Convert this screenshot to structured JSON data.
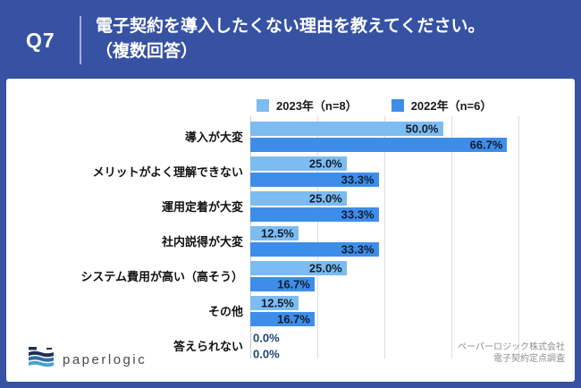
{
  "header": {
    "q_label": "Q7",
    "title_line1": "電子契約を導入したくない理由を教えてください。",
    "title_line2": "（複数回答）"
  },
  "chart_data": {
    "type": "bar",
    "orientation": "horizontal",
    "title": "電子契約を導入したくない理由（複数回答）",
    "categories": [
      "導入が大変",
      "メリットがよく理解できない",
      "運用定着が大変",
      "社内説得が大変",
      "システム費用が高い（高そう）",
      "その他",
      "答えられない"
    ],
    "series": [
      {
        "name": "2023年（n=8）",
        "color": "#7cbcf0",
        "values": [
          50.0,
          25.0,
          25.0,
          12.5,
          25.0,
          12.5,
          0.0
        ],
        "labels": [
          "50.0%",
          "25.0%",
          "25.0%",
          "12.5%",
          "25.0%",
          "12.5%",
          "0.0%"
        ]
      },
      {
        "name": "2022年（n=6）",
        "color": "#3e8ee9",
        "values": [
          66.7,
          33.3,
          33.3,
          33.3,
          16.7,
          16.7,
          0.0
        ],
        "labels": [
          "66.7%",
          "33.3%",
          "33.3%",
          "33.3%",
          "16.7%",
          "16.7%",
          "0.0%"
        ]
      }
    ],
    "xlim": [
      0,
      83.7
    ],
    "gridline_positions_pct": [
      0,
      17.4,
      34.8,
      52.2,
      69.6
    ],
    "value_suffix": "%",
    "legend_position": "top",
    "grid": true
  },
  "footer": {
    "logo_text": "paperlogic",
    "source_line1": "ペーパーロジック株式会社",
    "source_line2": "電子契約定点調査"
  },
  "colors": {
    "background": "#3752a2",
    "card": "#ffffff",
    "bar_2023": "#7cbcf0",
    "bar_2022": "#3e8ee9",
    "value_label": "#131d31",
    "zero_label": "#1d4379",
    "gridline": "#dcdcdc"
  }
}
